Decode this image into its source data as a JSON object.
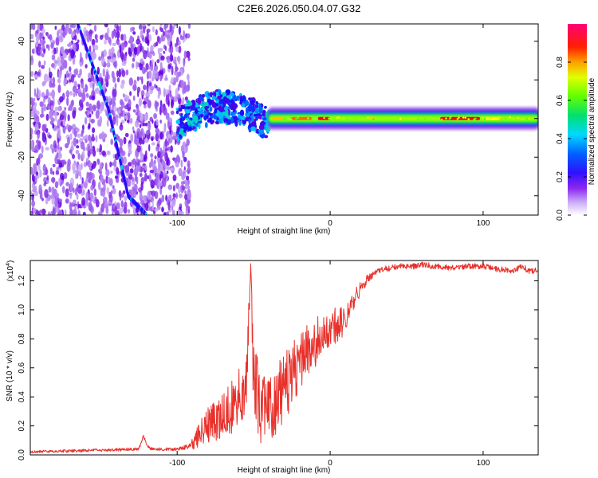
{
  "figure_title": "C2E6.2026.050.04.07.G32",
  "colors": {
    "snr_line": "#e8302a",
    "frame": "#000000",
    "background": "#ffffff"
  },
  "chart_data": [
    {
      "type": "heatmap",
      "name": "spectrogram",
      "title": "",
      "xlabel": "Height of straight line (km)",
      "ylabel": "Frequency (Hz)",
      "xlim": [
        -196,
        136
      ],
      "ylim": [
        -50,
        49
      ],
      "xticks": [
        -100,
        0,
        100
      ],
      "yticks": [
        -40,
        -20,
        0,
        20,
        40
      ],
      "colorbar": {
        "label": "Normalized spectral amplitude",
        "range": [
          0.0,
          1.0
        ],
        "ticks": [
          0.0,
          0.2,
          0.4,
          0.6,
          0.8
        ],
        "tick_labels": [
          "0.0",
          "0.2",
          "0.4",
          "0.6",
          "0.8"
        ],
        "colormap": [
          "#ffffff",
          "#b080f0",
          "#6a00e0",
          "#1010ff",
          "#00c8ff",
          "#00e060",
          "#80ff00",
          "#ffff00",
          "#ff8000",
          "#ff0000",
          "#ff0080"
        ]
      },
      "features": [
        {
          "label": "main tone",
          "x_range": [
            -40,
            136
          ],
          "frequency_hz": 0,
          "amplitude": 0.9
        },
        {
          "label": "transition",
          "x_range": [
            -100,
            -40
          ],
          "frequency_hz": [
            -8,
            12
          ],
          "amplitude": 0.35
        },
        {
          "label": "diagonal streak",
          "x": [
            -165,
            -145,
            -132,
            -120
          ],
          "frequency_hz": [
            49,
            5,
            -40,
            -50
          ],
          "amplitude": 0.25
        },
        {
          "label": "noise",
          "x_range": [
            -196,
            -92
          ],
          "frequency_hz": [
            -50,
            49
          ],
          "amplitude": 0.12
        }
      ]
    },
    {
      "type": "line",
      "name": "snr",
      "title": "",
      "xlabel": "Height of straight line (km)",
      "ylabel": "SNR (10 * v/v)",
      "multiplier": "(x10",
      "multiplier_exp": "4",
      "multiplier_close": ")",
      "xlim": [
        -196,
        136
      ],
      "ylim": [
        0,
        1.34
      ],
      "xticks": [
        -100,
        0,
        100
      ],
      "yticks": [
        0.0,
        0.2,
        0.4,
        0.6,
        0.8,
        1.0,
        1.2
      ],
      "ytick_labels": [
        "0.0",
        "0.2",
        "0.4",
        "0.6",
        "0.8",
        "1.0",
        "1.2"
      ],
      "series": [
        {
          "name": "SNR",
          "x": [
            -196,
            -180,
            -160,
            -140,
            -125,
            -122,
            -120,
            -117,
            -110,
            -100,
            -92,
            -85,
            -78,
            -70,
            -62,
            -55,
            -52,
            -50,
            -48,
            -45,
            -40,
            -35,
            -30,
            -25,
            -20,
            -15,
            -10,
            -5,
            0,
            5,
            10,
            15,
            18,
            22,
            26,
            30,
            35,
            40,
            45,
            50,
            55,
            60,
            70,
            80,
            90,
            100,
            110,
            120,
            125,
            130,
            136
          ],
          "values": [
            0.02,
            0.025,
            0.03,
            0.035,
            0.04,
            0.13,
            0.07,
            0.04,
            0.04,
            0.04,
            0.06,
            0.14,
            0.22,
            0.28,
            0.35,
            0.45,
            1.3,
            0.5,
            0.4,
            0.35,
            0.3,
            0.38,
            0.45,
            0.55,
            0.62,
            0.7,
            0.78,
            0.85,
            0.9,
            0.88,
            0.95,
            1.05,
            1.12,
            1.18,
            1.23,
            1.26,
            1.28,
            1.29,
            1.3,
            1.3,
            1.3,
            1.31,
            1.3,
            1.29,
            1.3,
            1.3,
            1.28,
            1.27,
            1.3,
            1.27,
            1.27
          ],
          "noise": [
            0.01,
            0.01,
            0.01,
            0.01,
            0.01,
            0.01,
            0.01,
            0.01,
            0.01,
            0.01,
            0.02,
            0.1,
            0.14,
            0.16,
            0.2,
            0.25,
            0.05,
            0.3,
            0.3,
            0.28,
            0.25,
            0.25,
            0.25,
            0.22,
            0.22,
            0.2,
            0.18,
            0.15,
            0.15,
            0.12,
            0.1,
            0.08,
            0.06,
            0.04,
            0.03,
            0.02,
            0.02,
            0.02,
            0.02,
            0.02,
            0.02,
            0.02,
            0.02,
            0.02,
            0.02,
            0.02,
            0.02,
            0.02,
            0.02,
            0.02,
            0.02
          ]
        }
      ]
    }
  ]
}
